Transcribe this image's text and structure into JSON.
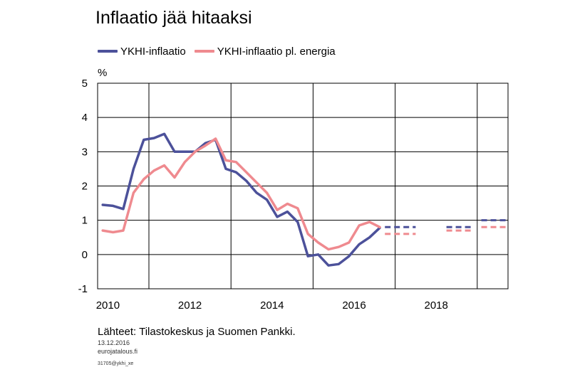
{
  "title": "Inflaatio jää hitaaksi",
  "legend": [
    {
      "label": "YKHI-inflaatio",
      "color": "#4c519a"
    },
    {
      "label": "YKHI-inflaatio pl. energia",
      "color": "#ef8a8f"
    }
  ],
  "unit_label": "%",
  "source": "Lähteet: Tilastokeskus ja Suomen Pankki.",
  "date": "13.12.2016",
  "site": "eurojatalous.fi",
  "code": "31705@ykhi_xe",
  "chart_data": {
    "type": "line",
    "xlim": [
      2009.75,
      2019.75
    ],
    "ylim": [
      -1,
      5
    ],
    "x_ticks": [
      2010,
      2012,
      2014,
      2016,
      2018
    ],
    "y_ticks": [
      -1,
      0,
      1,
      2,
      3,
      4,
      5
    ],
    "grid": true,
    "legend_position": "top-left",
    "series": [
      {
        "name": "YKHI-inflaatio",
        "color": "#4c519a",
        "x": [
          2009.875,
          2010.125,
          2010.375,
          2010.625,
          2010.875,
          2011.125,
          2011.375,
          2011.625,
          2011.875,
          2012.125,
          2012.375,
          2012.625,
          2012.875,
          2013.125,
          2013.375,
          2013.625,
          2013.875,
          2014.125,
          2014.375,
          2014.625,
          2014.875,
          2015.125,
          2015.375,
          2015.625,
          2015.875,
          2016.125,
          2016.375,
          2016.625
        ],
        "values": [
          1.45,
          1.42,
          1.33,
          2.5,
          3.35,
          3.4,
          3.52,
          3.0,
          3.0,
          3.0,
          3.25,
          3.35,
          2.5,
          2.4,
          2.15,
          1.8,
          1.6,
          1.1,
          1.25,
          0.95,
          -0.05,
          0.0,
          -0.32,
          -0.28,
          -0.05,
          0.3,
          0.5,
          0.78
        ]
      },
      {
        "name": "YKHI-inflaatio pl. energia",
        "color": "#ef8a8f",
        "x": [
          2009.875,
          2010.125,
          2010.375,
          2010.625,
          2010.875,
          2011.125,
          2011.375,
          2011.625,
          2011.875,
          2012.125,
          2012.375,
          2012.625,
          2012.875,
          2013.125,
          2013.375,
          2013.625,
          2013.875,
          2014.125,
          2014.375,
          2014.625,
          2014.875,
          2015.125,
          2015.375,
          2015.625,
          2015.875,
          2016.125,
          2016.375,
          2016.625
        ],
        "values": [
          0.7,
          0.65,
          0.7,
          1.8,
          2.2,
          2.45,
          2.6,
          2.25,
          2.7,
          3.0,
          3.18,
          3.38,
          2.75,
          2.7,
          2.4,
          2.1,
          1.8,
          1.3,
          1.48,
          1.35,
          0.6,
          0.35,
          0.15,
          0.22,
          0.35,
          0.85,
          0.95,
          0.8
        ]
      }
    ],
    "forecasts": [
      {
        "series": "YKHI-inflaatio",
        "segments": [
          {
            "x": [
              2016.75,
              2017.5
            ],
            "value": 0.8
          },
          {
            "x": [
              2018.25,
              2018.85
            ],
            "value": 0.8
          },
          {
            "x": [
              2019.1,
              2019.75
            ],
            "value": 1.0
          }
        ]
      },
      {
        "series": "YKHI-inflaatio pl. energia",
        "segments": [
          {
            "x": [
              2016.75,
              2017.5
            ],
            "value": 0.6
          },
          {
            "x": [
              2018.25,
              2018.85
            ],
            "value": 0.7
          },
          {
            "x": [
              2019.1,
              2019.75
            ],
            "value": 0.8
          }
        ]
      }
    ]
  }
}
